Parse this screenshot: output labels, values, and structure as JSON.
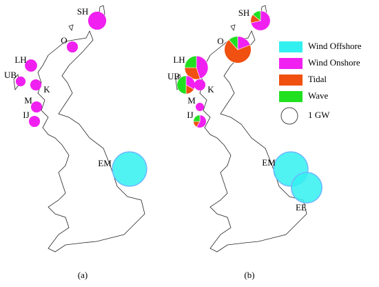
{
  "legend": {
    "items": [
      {
        "name": "Wind Offshore",
        "color": "#33f0f0"
      },
      {
        "name": "Wind Onshore",
        "color": "#f020f0"
      },
      {
        "name": "Tidal",
        "color": "#f05010"
      },
      {
        "name": "Wave",
        "color": "#20e020"
      }
    ],
    "scale": {
      "value": 1,
      "label": "1 GW"
    }
  },
  "panels": [
    {
      "label": "(a)",
      "sites": [
        {
          "label": "SH",
          "values": [
            0,
            1.2,
            0,
            0
          ]
        },
        {
          "label": "O",
          "values": [
            0,
            0.45,
            0,
            0
          ]
        },
        {
          "label": "LH",
          "values": [
            0,
            0.55,
            0,
            0
          ]
        },
        {
          "label": "UB",
          "values": [
            0,
            0.35,
            0,
            0
          ]
        },
        {
          "label": "K",
          "values": [
            0,
            0.45,
            0,
            0
          ]
        },
        {
          "label": "M",
          "values": [
            0,
            0.45,
            0,
            0
          ]
        },
        {
          "label": "IJ",
          "values": [
            0,
            0.45,
            0,
            0
          ]
        },
        {
          "label": "EM",
          "values": [
            4.3,
            0,
            0,
            0
          ]
        }
      ]
    },
    {
      "label": "(b)",
      "sites": [
        {
          "label": "SH",
          "values": [
            0,
            1.0,
            0.2,
            0.2
          ]
        },
        {
          "label": "O",
          "values": [
            0,
            0.5,
            1.8,
            0.3
          ]
        },
        {
          "label": "LH",
          "values": [
            0,
            0.9,
            0.6,
            0.5
          ]
        },
        {
          "label": "UB",
          "values": [
            0,
            0.4,
            0.2,
            0.6
          ]
        },
        {
          "label": "K",
          "values": [
            0,
            0.45,
            0,
            0
          ]
        },
        {
          "label": "M",
          "values": [
            0,
            0.25,
            0,
            0
          ]
        },
        {
          "label": "IJ",
          "values": [
            0,
            0.35,
            0.1,
            0.15
          ]
        },
        {
          "label": "EM",
          "values": [
            4.3,
            0,
            0,
            0
          ]
        },
        {
          "label": "EE",
          "values": [
            3.4,
            0,
            0,
            0
          ]
        }
      ]
    }
  ]
}
